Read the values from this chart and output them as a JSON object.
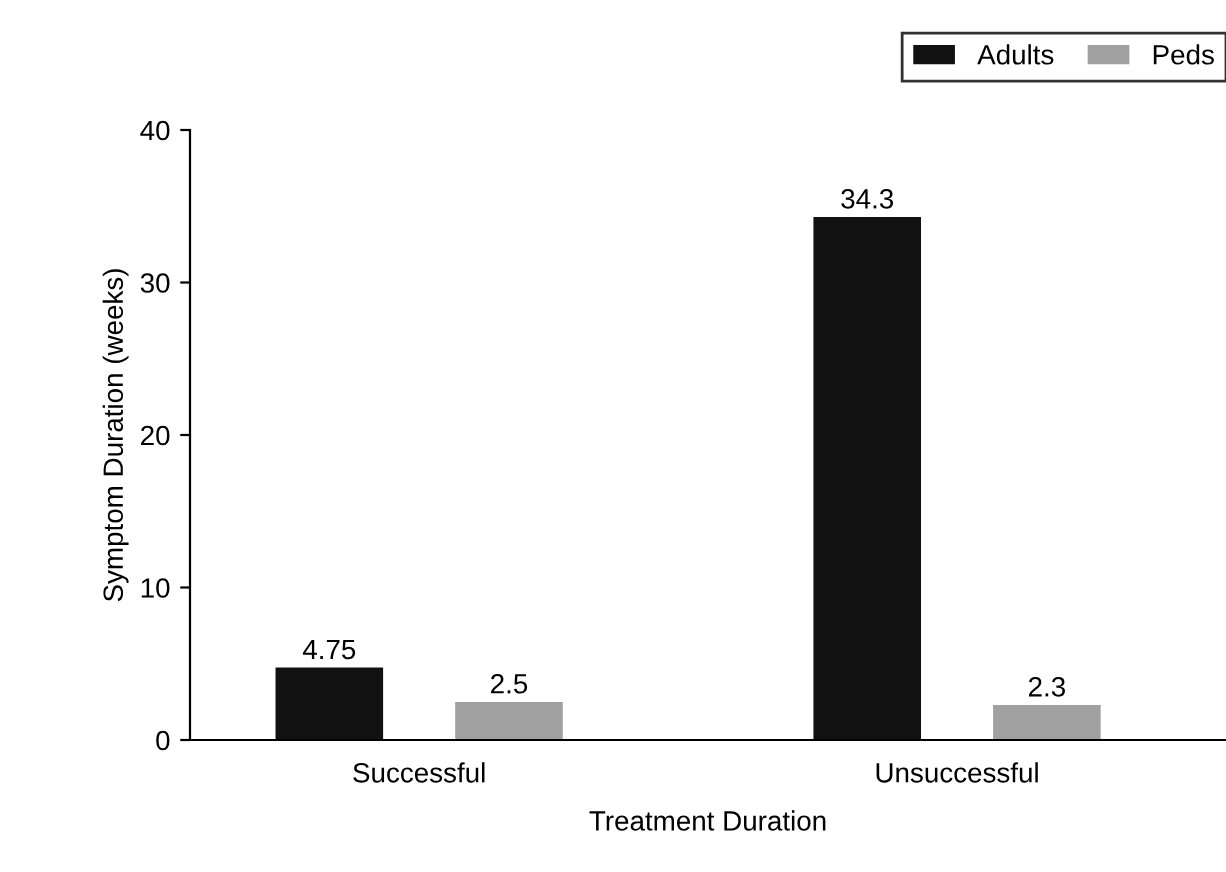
{
  "chart_data": {
    "type": "bar",
    "xlabel": "Treatment Duration",
    "ylabel": "Symptom Duration (weeks)",
    "categories": [
      "Successful",
      "Unsuccessful"
    ],
    "series": [
      {
        "name": "Adults",
        "color": "#111111",
        "values": [
          4.75,
          34.3
        ]
      },
      {
        "name": "Peds",
        "color": "#a0a0a0",
        "values": [
          2.5,
          2.3
        ]
      }
    ],
    "ylim": [
      0,
      40
    ],
    "yticks": [
      0,
      10,
      20,
      30,
      40
    ],
    "data_labels": true,
    "grid": false,
    "legend": "top right"
  }
}
